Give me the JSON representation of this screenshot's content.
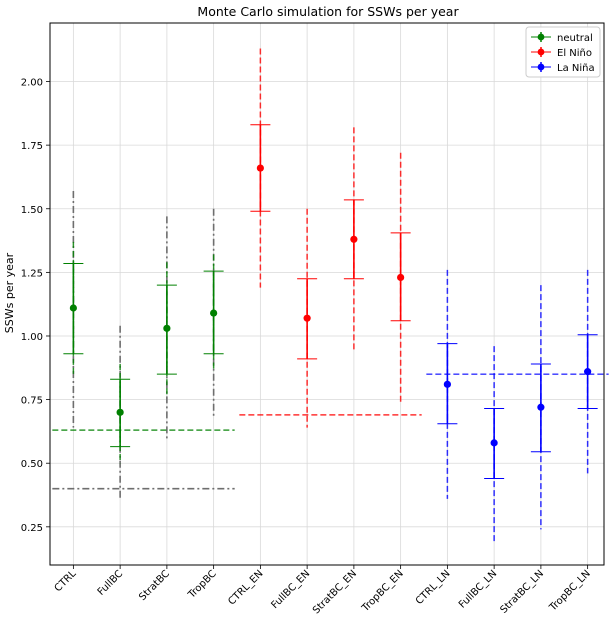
{
  "chart_data": {
    "type": "scatter",
    "title": "Monte Carlo simulation for SSWs per year",
    "xlabel": "",
    "ylabel": "SSWs per year",
    "ylim": [
      0.1,
      2.23
    ],
    "yticks": [
      0.25,
      0.5,
      0.75,
      1.0,
      1.25,
      1.5,
      1.75,
      2.0
    ],
    "ytick_labels": [
      "0.25",
      "0.50",
      "0.75",
      "1.00",
      "1.25",
      "1.50",
      "1.75",
      "2.00"
    ],
    "grid": true,
    "legend_position": "top-right",
    "categories": [
      "CTRL",
      "FullBC",
      "StratBC",
      "TropBC",
      "CTRL_EN",
      "FullBC_EN",
      "StratBC_EN",
      "TropBC_EN",
      "CTRL_LN",
      "FullBC_LN",
      "StratBC_LN",
      "TropBC_LN"
    ],
    "series": [
      {
        "name": "neutral",
        "color": "#008000",
        "cat_index": [
          0,
          1,
          2,
          3
        ],
        "values": [
          1.11,
          0.7,
          1.03,
          1.09
        ],
        "err_low": [
          0.93,
          0.565,
          0.85,
          0.93
        ],
        "err_high": [
          1.285,
          0.83,
          1.2,
          1.255
        ],
        "range_low": [
          0.84,
          0.5,
          0.77,
          0.86
        ],
        "range_high": [
          1.37,
          0.89,
          1.29,
          1.32
        ],
        "mean_line": 0.63,
        "mean_line_span": [
          0,
          3
        ]
      },
      {
        "name": "El Niño",
        "color": "#ff0000",
        "cat_index": [
          4,
          5,
          6,
          7
        ],
        "values": [
          1.66,
          1.07,
          1.38,
          1.23
        ],
        "err_low": [
          1.49,
          0.91,
          1.225,
          1.06
        ],
        "err_high": [
          1.83,
          1.225,
          1.535,
          1.405
        ],
        "range_low": [
          1.19,
          0.64,
          0.94,
          0.74
        ],
        "range_high": [
          2.13,
          1.5,
          1.82,
          1.72
        ],
        "mean_line": 0.69,
        "mean_line_span": [
          4,
          7
        ]
      },
      {
        "name": "La Niña",
        "color": "#0000ff",
        "cat_index": [
          8,
          9,
          10,
          11
        ],
        "values": [
          0.81,
          0.58,
          0.72,
          0.86
        ],
        "err_low": [
          0.655,
          0.44,
          0.545,
          0.715
        ],
        "err_high": [
          0.97,
          0.715,
          0.89,
          1.005
        ],
        "range_low": [
          0.36,
          0.19,
          0.24,
          0.46
        ],
        "range_high": [
          1.26,
          0.96,
          1.2,
          1.26
        ],
        "mean_line": 0.85,
        "mean_line_span": [
          8,
          11
        ]
      }
    ],
    "reference": {
      "color": "#6e6e6e",
      "cat_index": [
        0,
        1,
        2,
        3
      ],
      "range_low": [
        0.64,
        0.36,
        0.59,
        0.68
      ],
      "range_high": [
        1.57,
        1.04,
        1.47,
        1.5
      ],
      "mean_line": 0.4,
      "mean_line_span": [
        0,
        3
      ]
    }
  }
}
